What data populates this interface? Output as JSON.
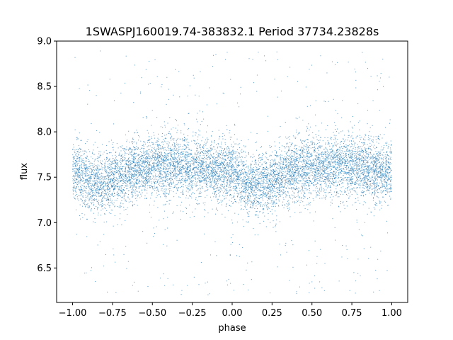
{
  "chart_data": {
    "type": "scatter",
    "title": "1SWASPJ160019.74-383832.1 Period 37734.23828s",
    "xlabel": "phase",
    "ylabel": "flux",
    "xlim": [
      -1.1,
      1.1
    ],
    "ylim": [
      6.12,
      9.0
    ],
    "xticks": [
      -1.0,
      -0.75,
      -0.5,
      -0.25,
      0.0,
      0.25,
      0.5,
      0.75,
      1.0
    ],
    "xtick_labels": [
      "−1.00",
      "−0.75",
      "−0.50",
      "−0.25",
      "0.00",
      "0.25",
      "0.50",
      "0.75",
      "1.00"
    ],
    "yticks": [
      6.5,
      7.0,
      7.5,
      8.0,
      8.5,
      9.0
    ],
    "ytick_labels": [
      "6.5",
      "7.0",
      "7.5",
      "8.0",
      "8.5",
      "9.0"
    ],
    "grid": false,
    "point_color": "#1f77b4",
    "phase_range": [
      -1.0,
      1.0
    ],
    "light_curve_profile": [
      {
        "phase": -1.0,
        "flux": 7.55
      },
      {
        "phase": -0.85,
        "flux": 7.43
      },
      {
        "phase": -0.5,
        "flux": 7.62
      },
      {
        "phase": -0.25,
        "flux": 7.62
      },
      {
        "phase": -0.05,
        "flux": 7.56
      },
      {
        "phase": 0.15,
        "flux": 7.42
      },
      {
        "phase": 0.5,
        "flux": 7.62
      },
      {
        "phase": 0.75,
        "flux": 7.62
      },
      {
        "phase": 1.0,
        "flux": 7.55
      }
    ],
    "flux_scatter_sigma": 0.17,
    "outlier_flux_range": [
      6.2,
      8.9
    ]
  }
}
